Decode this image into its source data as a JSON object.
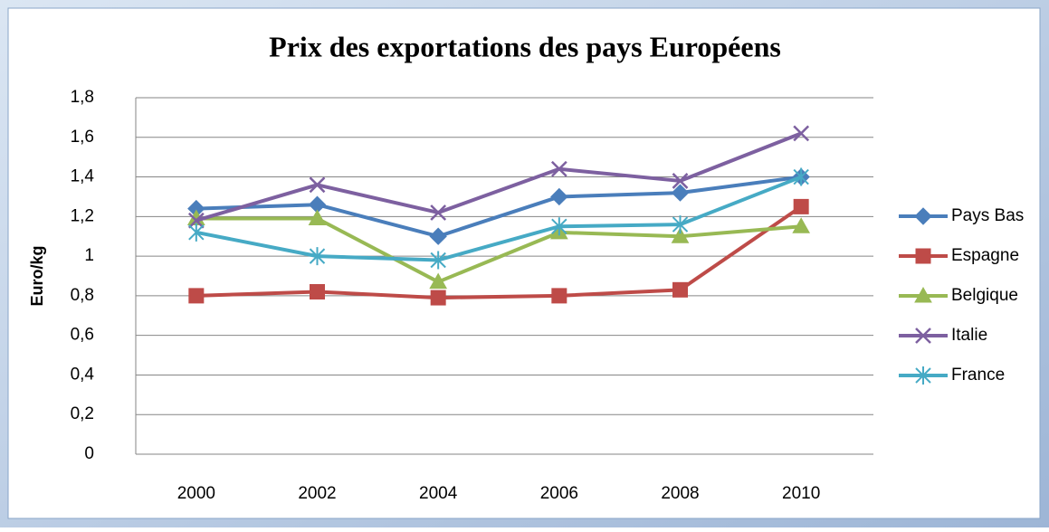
{
  "chart_data": {
    "type": "line",
    "title": "Prix des exportations des pays Européens",
    "y_label": "Euro/kg",
    "categories": [
      "2000",
      "2002",
      "2004",
      "2006",
      "2008",
      "2010"
    ],
    "series": [
      {
        "name": "Pays Bas",
        "color": "#4a7ebb",
        "marker": "diamond",
        "values": [
          1.24,
          1.26,
          1.1,
          1.3,
          1.32,
          1.4
        ]
      },
      {
        "name": "Espagne",
        "color": "#be4b48",
        "marker": "square",
        "values": [
          0.8,
          0.82,
          0.79,
          0.8,
          0.83,
          1.25
        ]
      },
      {
        "name": "Belgique",
        "color": "#98b954",
        "marker": "triangle",
        "values": [
          1.19,
          1.19,
          0.87,
          1.12,
          1.1,
          1.15
        ]
      },
      {
        "name": "Italie",
        "color": "#7d60a0",
        "marker": "x",
        "values": [
          1.18,
          1.36,
          1.22,
          1.44,
          1.38,
          1.62
        ]
      },
      {
        "name": "France",
        "color": "#46aac5",
        "marker": "star",
        "values": [
          1.12,
          1.0,
          0.98,
          1.15,
          1.16,
          1.4
        ]
      }
    ],
    "ylim": [
      0,
      1.8
    ],
    "yticks": [
      0,
      {
        "value": 0.2,
        "label": "0,2"
      },
      {
        "value": 0.4,
        "label": "0,4"
      },
      {
        "value": 0.6,
        "label": "0,6"
      },
      {
        "value": 0.8,
        "label": "0,8"
      },
      1,
      {
        "value": 1.2,
        "label": "1,2"
      },
      {
        "value": 1.4,
        "label": "1,4"
      },
      {
        "value": 1.6,
        "label": "1,6"
      },
      {
        "value": 1.8,
        "label": "1,8"
      }
    ],
    "grid": true,
    "legend": "right"
  }
}
